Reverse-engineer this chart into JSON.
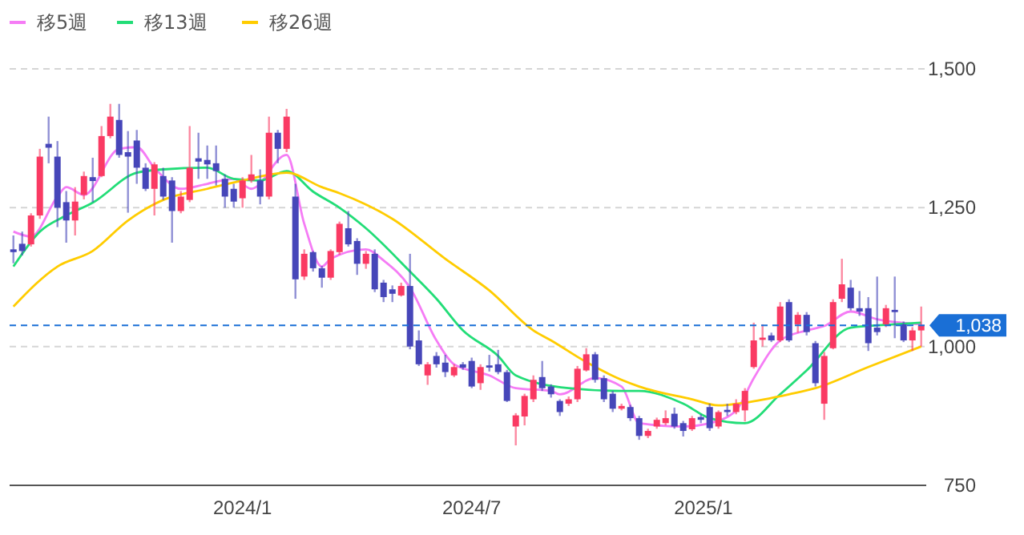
{
  "chart_data": {
    "type": "candlestick",
    "x": [
      "2023-07-03",
      "2023-07-10",
      "2023-07-17",
      "2023-07-24",
      "2023-07-31",
      "2023-08-07",
      "2023-08-14",
      "2023-08-21",
      "2023-08-28",
      "2023-09-04",
      "2023-09-11",
      "2023-09-18",
      "2023-09-25",
      "2023-10-02",
      "2023-10-09",
      "2023-10-16",
      "2023-10-23",
      "2023-10-30",
      "2023-11-06",
      "2023-11-13",
      "2023-11-20",
      "2023-11-27",
      "2023-12-04",
      "2023-12-11",
      "2023-12-18",
      "2023-12-25",
      "2024-01-01",
      "2024-01-08",
      "2024-01-15",
      "2024-01-22",
      "2024-01-29",
      "2024-02-05",
      "2024-02-12",
      "2024-02-19",
      "2024-02-26",
      "2024-03-04",
      "2024-03-11",
      "2024-03-18",
      "2024-03-25",
      "2024-04-01",
      "2024-04-08",
      "2024-04-15",
      "2024-04-22",
      "2024-04-29",
      "2024-05-06",
      "2024-05-13",
      "2024-05-20",
      "2024-05-27",
      "2024-06-03",
      "2024-06-10",
      "2024-06-17",
      "2024-06-24",
      "2024-07-01",
      "2024-07-08",
      "2024-07-15",
      "2024-07-22",
      "2024-07-29",
      "2024-08-05",
      "2024-08-12",
      "2024-08-19",
      "2024-08-26",
      "2024-09-02",
      "2024-09-09",
      "2024-09-16",
      "2024-09-23",
      "2024-09-30",
      "2024-10-07",
      "2024-10-14",
      "2024-10-21",
      "2024-10-28",
      "2024-11-04",
      "2024-11-11",
      "2024-11-18",
      "2024-11-25",
      "2024-12-02",
      "2024-12-09",
      "2024-12-16",
      "2024-12-23",
      "2024-12-30",
      "2025-01-06",
      "2025-01-13",
      "2025-01-20",
      "2025-01-27",
      "2025-02-03",
      "2025-02-10",
      "2025-02-17",
      "2025-02-24",
      "2025-03-03",
      "2025-03-10",
      "2025-03-17",
      "2025-03-24",
      "2025-03-31",
      "2025-04-07",
      "2025-04-14",
      "2025-04-21",
      "2025-04-28",
      "2025-05-05",
      "2025-05-12",
      "2025-05-19",
      "2025-05-26",
      "2025-06-02",
      "2025-06-09",
      "2025-06-16",
      "2025-06-23"
    ],
    "ohlc": [
      [
        1175,
        1200,
        1150,
        1170
      ],
      [
        1185,
        1207,
        1164,
        1172
      ],
      [
        1184,
        1240,
        1180,
        1236
      ],
      [
        1236,
        1356,
        1230,
        1342
      ],
      [
        1365,
        1414,
        1330,
        1358
      ],
      [
        1342,
        1370,
        1215,
        1250
      ],
      [
        1260,
        1280,
        1187,
        1227
      ],
      [
        1227,
        1287,
        1200,
        1261
      ],
      [
        1273,
        1315,
        1265,
        1307
      ],
      [
        1305,
        1340,
        1260,
        1298
      ],
      [
        1307,
        1397,
        1305,
        1379
      ],
      [
        1379,
        1437,
        1375,
        1414
      ],
      [
        1408,
        1437,
        1340,
        1345
      ],
      [
        1350,
        1388,
        1241,
        1342
      ],
      [
        1371,
        1390,
        1293,
        1322
      ],
      [
        1322,
        1330,
        1280,
        1284
      ],
      [
        1284,
        1332,
        1236,
        1328
      ],
      [
        1307,
        1322,
        1264,
        1270
      ],
      [
        1299,
        1305,
        1187,
        1244
      ],
      [
        1244,
        1280,
        1240,
        1270
      ],
      [
        1264,
        1397,
        1260,
        1322
      ],
      [
        1339,
        1385,
        1302,
        1333
      ],
      [
        1336,
        1362,
        1302,
        1328
      ],
      [
        1330,
        1362,
        1290,
        1316
      ],
      [
        1302,
        1310,
        1250,
        1270
      ],
      [
        1284,
        1293,
        1250,
        1261
      ],
      [
        1267,
        1305,
        1250,
        1299
      ],
      [
        1299,
        1345,
        1295,
        1310
      ],
      [
        1299,
        1319,
        1256,
        1270
      ],
      [
        1270,
        1414,
        1265,
        1385
      ],
      [
        1385,
        1390,
        1330,
        1356
      ],
      [
        1356,
        1428,
        1350,
        1414
      ],
      [
        1270,
        1293,
        1086,
        1121
      ],
      [
        1126,
        1175,
        1120,
        1167
      ],
      [
        1170,
        1172,
        1135,
        1141
      ],
      [
        1141,
        1145,
        1106,
        1124
      ],
      [
        1124,
        1175,
        1120,
        1172
      ],
      [
        1170,
        1225,
        1165,
        1221
      ],
      [
        1213,
        1244,
        1180,
        1184
      ],
      [
        1190,
        1195,
        1129,
        1149
      ],
      [
        1149,
        1172,
        1140,
        1167
      ],
      [
        1167,
        1175,
        1098,
        1103
      ],
      [
        1115,
        1120,
        1080,
        1089
      ],
      [
        1103,
        1110,
        1080,
        1095
      ],
      [
        1092,
        1115,
        1090,
        1109
      ],
      [
        1109,
        1167,
        995,
        1000
      ],
      [
        1011,
        1029,
        965,
        968
      ],
      [
        948,
        972,
        931,
        968
      ],
      [
        983,
        990,
        962,
        968
      ],
      [
        971,
        985,
        945,
        954
      ],
      [
        948,
        968,
        945,
        963
      ],
      [
        968,
        972,
        958,
        962
      ],
      [
        974,
        980,
        925,
        928
      ],
      [
        934,
        968,
        922,
        963
      ],
      [
        966,
        985,
        955,
        962
      ],
      [
        968,
        994,
        950,
        954
      ],
      [
        954,
        958,
        900,
        902
      ],
      [
        856,
        880,
        822,
        876
      ],
      [
        874,
        915,
        858,
        911
      ],
      [
        905,
        948,
        900,
        940
      ],
      [
        945,
        974,
        920,
        925
      ],
      [
        928,
        932,
        908,
        914
      ],
      [
        902,
        905,
        875,
        882
      ],
      [
        897,
        910,
        893,
        905
      ],
      [
        905,
        965,
        900,
        960
      ],
      [
        957,
        997,
        955,
        986
      ],
      [
        986,
        990,
        935,
        940
      ],
      [
        943,
        948,
        900,
        905
      ],
      [
        915,
        920,
        882,
        888
      ],
      [
        888,
        897,
        885,
        893
      ],
      [
        891,
        895,
        866,
        871
      ],
      [
        871,
        875,
        832,
        839
      ],
      [
        839,
        852,
        835,
        848
      ],
      [
        856,
        872,
        852,
        868
      ],
      [
        862,
        885,
        858,
        871
      ],
      [
        879,
        890,
        852,
        856
      ],
      [
        862,
        866,
        838,
        848
      ],
      [
        851,
        875,
        848,
        871
      ],
      [
        873,
        878,
        862,
        868
      ],
      [
        891,
        897,
        848,
        853
      ],
      [
        856,
        885,
        852,
        882
      ],
      [
        886,
        897,
        875,
        882
      ],
      [
        882,
        905,
        878,
        897
      ],
      [
        885,
        925,
        865,
        920
      ],
      [
        963,
        1043,
        960,
        1011
      ],
      [
        1012,
        1040,
        1000,
        1016
      ],
      [
        1020,
        1025,
        1008,
        1011
      ],
      [
        1011,
        1080,
        1008,
        1072
      ],
      [
        1080,
        1085,
        1008,
        1011
      ],
      [
        1040,
        1062,
        1025,
        1057
      ],
      [
        1057,
        1062,
        1020,
        1026
      ],
      [
        1006,
        1010,
        928,
        934
      ],
      [
        897,
        990,
        868,
        983
      ],
      [
        997,
        1085,
        995,
        1080
      ],
      [
        1086,
        1158,
        1080,
        1112
      ],
      [
        1106,
        1120,
        1065,
        1069
      ],
      [
        1069,
        1100,
        1055,
        1063
      ],
      [
        1069,
        1089,
        992,
        1006
      ],
      [
        1034,
        1126,
        1020,
        1026
      ],
      [
        1040,
        1075,
        1035,
        1069
      ],
      [
        1066,
        1126,
        1015,
        1062
      ],
      [
        1040,
        1045,
        1008,
        1011
      ],
      [
        1011,
        1035,
        992,
        1029
      ],
      [
        1029,
        1072,
        1000,
        1038
      ]
    ],
    "colors": [
      "#4646b9",
      "#4646b9",
      "#fa3a63",
      "#fa3a63",
      "#4646b9",
      "#4646b9",
      "#4646b9",
      "#fa3a63",
      "#fa3a63",
      "#4646b9",
      "#fa3a63",
      "#fa3a63",
      "#4646b9",
      "#4646b9",
      "#4646b9",
      "#4646b9",
      "#fa3a63",
      "#4646b9",
      "#4646b9",
      "#fa3a63",
      "#fa3a63",
      "#4646b9",
      "#4646b9",
      "#4646b9",
      "#4646b9",
      "#4646b9",
      "#fa3a63",
      "#fa3a63",
      "#4646b9",
      "#fa3a63",
      "#4646b9",
      "#fa3a63",
      "#4646b9",
      "#fa3a63",
      "#4646b9",
      "#4646b9",
      "#fa3a63",
      "#fa3a63",
      "#4646b9",
      "#4646b9",
      "#fa3a63",
      "#4646b9",
      "#4646b9",
      "#4646b9",
      "#fa3a63",
      "#4646b9",
      "#4646b9",
      "#fa3a63",
      "#4646b9",
      "#4646b9",
      "#fa3a63",
      "#4646b9",
      "#4646b9",
      "#fa3a63",
      "#4646b9",
      "#4646b9",
      "#4646b9",
      "#fa3a63",
      "#fa3a63",
      "#fa3a63",
      "#4646b9",
      "#4646b9",
      "#4646b9",
      "#fa3a63",
      "#fa3a63",
      "#fa3a63",
      "#4646b9",
      "#4646b9",
      "#4646b9",
      "#fa3a63",
      "#4646b9",
      "#4646b9",
      "#fa3a63",
      "#fa3a63",
      "#fa3a63",
      "#4646b9",
      "#4646b9",
      "#fa3a63",
      "#4646b9",
      "#4646b9",
      "#fa3a63",
      "#4646b9",
      "#fa3a63",
      "#fa3a63",
      "#fa3a63",
      "#fa3a63",
      "#4646b9",
      "#fa3a63",
      "#4646b9",
      "#fa3a63",
      "#4646b9",
      "#4646b9",
      "#fa3a63",
      "#fa3a63",
      "#fa3a63",
      "#4646b9",
      "#4646b9",
      "#4646b9",
      "#4646b9",
      "#fa3a63",
      "#4646b9",
      "#4646b9",
      "#fa3a63",
      "#fa3a63"
    ],
    "series": [
      {
        "type": "line",
        "name": "移5週",
        "color": "#f57cf5",
        "x": [
          "2023-07-03",
          "2023-07-17",
          "2023-08-07",
          "2023-08-14",
          "2023-08-28",
          "2023-09-25",
          "2023-10-09",
          "2023-10-23",
          "2023-11-13",
          "2023-12-04",
          "2023-12-25",
          "2024-01-08",
          "2024-02-05",
          "2024-02-19",
          "2024-03-04",
          "2024-03-11",
          "2024-04-08",
          "2024-04-22",
          "2024-05-13",
          "2024-06-03",
          "2024-06-17",
          "2024-07-15",
          "2024-08-05",
          "2024-09-02",
          "2024-09-09",
          "2024-10-07",
          "2024-10-28",
          "2024-11-11",
          "2024-12-16",
          "2025-01-06",
          "2025-01-27",
          "2025-02-10",
          "2025-03-03",
          "2025-03-24",
          "2025-04-07",
          "2025-04-28",
          "2025-05-19",
          "2025-06-23"
        ],
        "values": [
          1207,
          1198,
          1270,
          1287,
          1273,
          1356,
          1359,
          1322,
          1284,
          1293,
          1302,
          1284,
          1345,
          1221,
          1144,
          1158,
          1175,
          1155,
          1106,
          1011,
          968,
          948,
          925,
          920,
          914,
          943,
          928,
          862,
          856,
          862,
          885,
          943,
          1011,
          1029,
          1037,
          1063,
          1049,
          1040
        ]
      },
      {
        "type": "line",
        "name": "移13週",
        "color": "#22dd77",
        "x": [
          "2023-07-03",
          "2023-07-24",
          "2023-08-14",
          "2023-09-04",
          "2023-10-09",
          "2023-10-30",
          "2023-12-04",
          "2023-12-25",
          "2024-01-15",
          "2024-02-05",
          "2024-02-26",
          "2024-03-18",
          "2024-04-08",
          "2024-05-13",
          "2024-06-03",
          "2024-06-24",
          "2024-07-22",
          "2024-08-05",
          "2024-09-16",
          "2024-10-28",
          "2024-11-11",
          "2024-12-16",
          "2025-01-06",
          "2025-02-03",
          "2025-03-03",
          "2025-03-24",
          "2025-04-28",
          "2025-06-02",
          "2025-06-23"
        ],
        "values": [
          1144,
          1207,
          1236,
          1259,
          1313,
          1319,
          1322,
          1302,
          1299,
          1316,
          1279,
          1250,
          1213,
          1135,
          1086,
          1029,
          983,
          948,
          925,
          920,
          920,
          897,
          871,
          862,
          914,
          957,
          1034,
          1040,
          1043
        ]
      },
      {
        "type": "line",
        "name": "移26週",
        "color": "#ffcc00",
        "x": [
          "2023-07-03",
          "2023-08-07",
          "2023-09-04",
          "2023-10-02",
          "2023-10-30",
          "2023-12-04",
          "2024-01-01",
          "2024-02-05",
          "2024-03-04",
          "2024-03-18",
          "2024-04-29",
          "2024-06-10",
          "2024-07-15",
          "2024-08-19",
          "2024-09-02",
          "2024-09-30",
          "2024-10-28",
          "2024-11-11",
          "2024-12-23",
          "2025-01-13",
          "2025-02-03",
          "2025-03-10",
          "2025-03-31",
          "2025-05-12",
          "2025-06-23"
        ],
        "values": [
          1072,
          1144,
          1172,
          1227,
          1264,
          1284,
          1299,
          1313,
          1287,
          1276,
          1230,
          1158,
          1101,
          1029,
          1011,
          972,
          940,
          928,
          905,
          894,
          899,
          914,
          925,
          963,
          1000
        ]
      }
    ],
    "xlim": [
      "2023-06-30",
      "2025-06-27"
    ],
    "xticks": [
      {
        "value": "2024-01-01",
        "label": "2024/1"
      },
      {
        "value": "2024-07-01",
        "label": "2024/7"
      },
      {
        "value": "2025-01-01",
        "label": "2025/1"
      }
    ],
    "ylim": [
      750,
      1500
    ],
    "yticks": [
      750,
      {
        "value": 1000,
        "label": "1,000"
      },
      {
        "value": 1250,
        "label": "1,250"
      },
      {
        "value": 1500,
        "label": "1,500"
      }
    ],
    "grid": "y",
    "legend": "top left",
    "marker": "none",
    "line_style": "solid",
    "ref_lines": [
      {
        "axis": "y",
        "value": 1038,
        "label": "1,038",
        "color": "#1a6fd6",
        "line_style": "dashed"
      }
    ]
  }
}
